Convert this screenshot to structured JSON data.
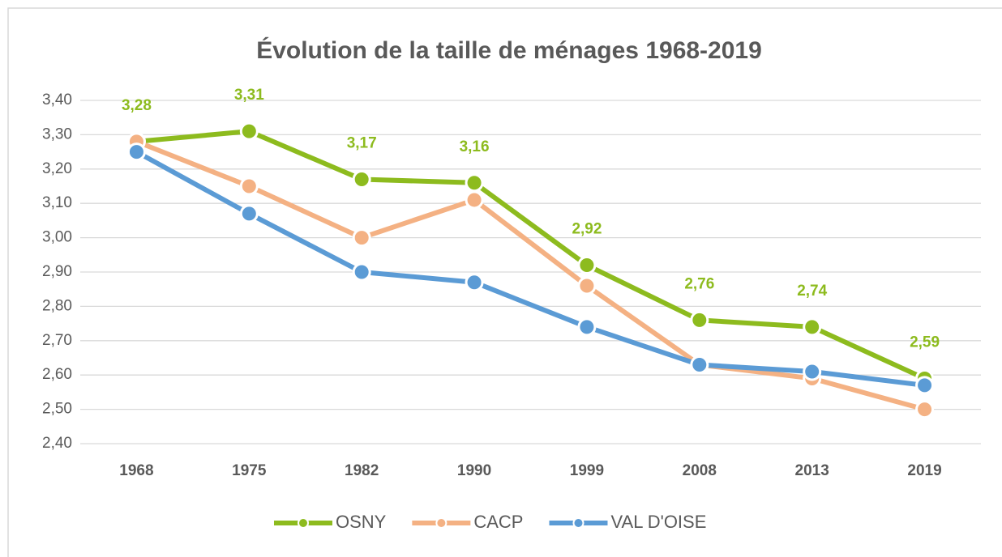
{
  "chart_data": {
    "type": "line",
    "title": "Évolution de la taille de ménages 1968-2019",
    "categories": [
      "1968",
      "1975",
      "1982",
      "1990",
      "1999",
      "2008",
      "2013",
      "2019"
    ],
    "series": [
      {
        "name": "OSNY",
        "color": "#8dbb1e",
        "values": [
          3.28,
          3.31,
          3.17,
          3.16,
          2.92,
          2.76,
          2.74,
          2.59
        ],
        "value_labels": [
          "3,28",
          "3,31",
          "3,17",
          "3,16",
          "2,92",
          "2,76",
          "2,74",
          "2,59"
        ]
      },
      {
        "name": "CACP",
        "color": "#f4b183",
        "values": [
          3.28,
          3.15,
          3.0,
          3.11,
          2.86,
          2.63,
          2.59,
          2.5
        ]
      },
      {
        "name": "VAL D'OISE",
        "color": "#5b9bd5",
        "values": [
          3.25,
          3.07,
          2.9,
          2.87,
          2.74,
          2.63,
          2.61,
          2.57
        ]
      }
    ],
    "ylim": [
      2.4,
      3.4
    ],
    "yticks": [
      {
        "value": 2.4,
        "label": "2,40"
      },
      {
        "value": 2.5,
        "label": "2,50"
      },
      {
        "value": 2.6,
        "label": "2,60"
      },
      {
        "value": 2.7,
        "label": "2,70"
      },
      {
        "value": 2.8,
        "label": "2,80"
      },
      {
        "value": 2.9,
        "label": "2,90"
      },
      {
        "value": 3.0,
        "label": "3,00"
      },
      {
        "value": 3.1,
        "label": "3,10"
      },
      {
        "value": 3.2,
        "label": "3,20"
      },
      {
        "value": 3.3,
        "label": "3,30"
      },
      {
        "value": 3.4,
        "label": "3,40"
      }
    ],
    "grid": true,
    "legend": "bottom"
  }
}
